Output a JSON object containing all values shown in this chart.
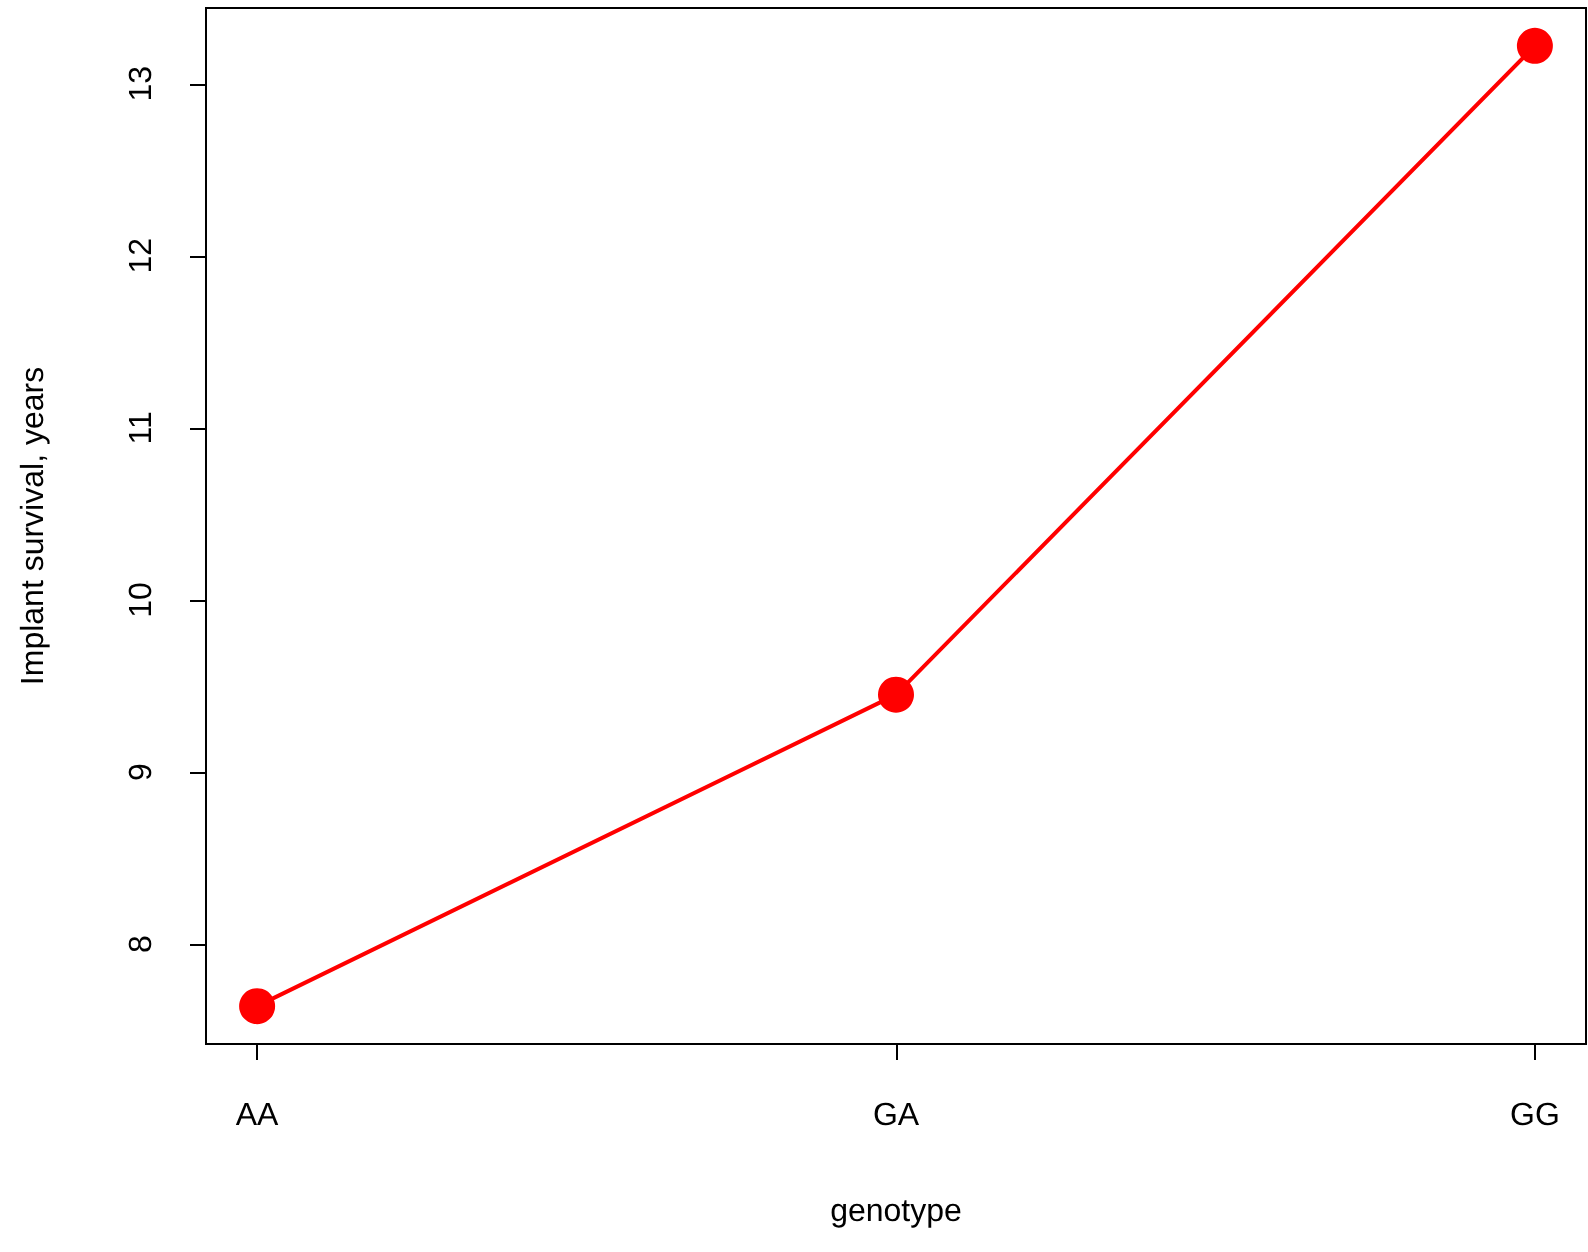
{
  "chart_data": {
    "type": "line",
    "xlabel": "genotype",
    "ylabel": "Implant survival, years",
    "categories": [
      "AA",
      "GA",
      "GG"
    ],
    "series": [
      {
        "color": "#ff0000",
        "values": [
          7.64,
          9.45,
          13.22
        ]
      }
    ],
    "ylim": [
      7.42,
      13.44
    ],
    "yticks": [
      8,
      9,
      10,
      11,
      12,
      13
    ],
    "grid": false,
    "marker": "circle",
    "line_style": "solid"
  }
}
